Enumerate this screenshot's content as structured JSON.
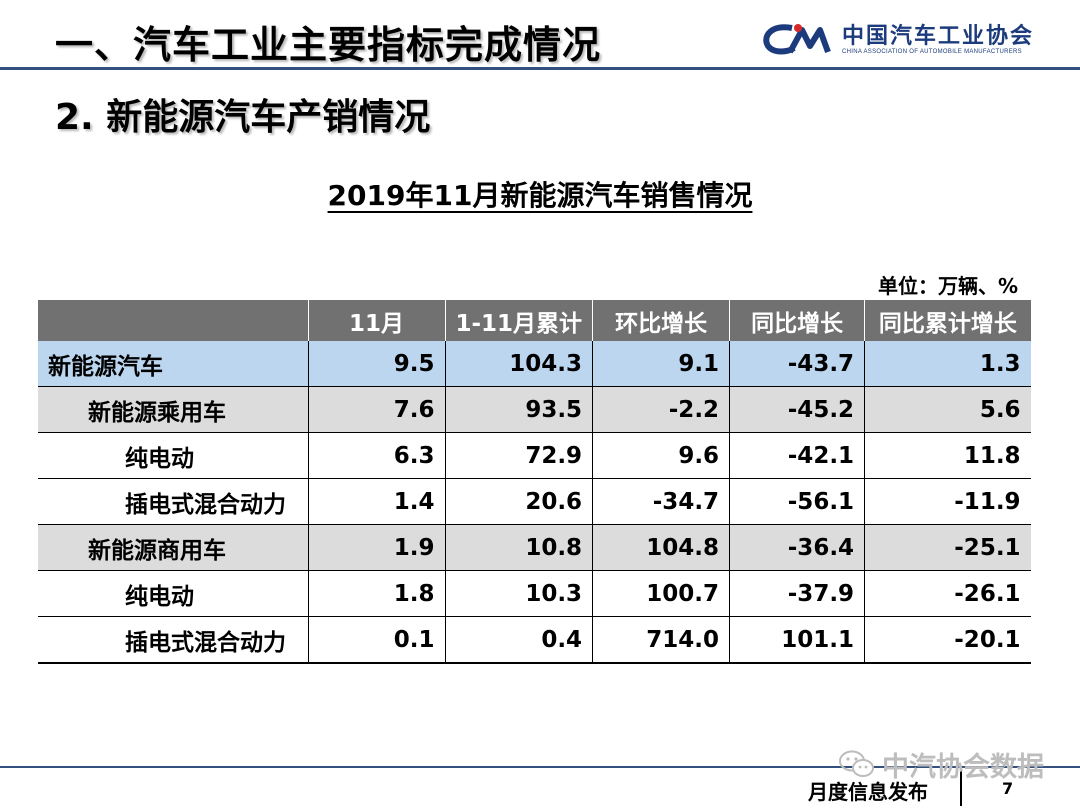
{
  "header": {
    "title": "一、汽车工业主要指标完成情况",
    "subtitle": "2. 新能源汽车产销情况",
    "logo_cn": "中国汽车工业协会",
    "logo_en": "CHINA ASSOCIATION OF AUTOMOBILE MANUFACTURERS"
  },
  "table": {
    "title": "2019年11月新能源汽车销售情况",
    "unit": "单位：万辆、%",
    "columns": [
      "",
      "11月",
      "1-11月累计",
      "环比增长",
      "同比增长",
      "同比累计增长"
    ],
    "rows": [
      {
        "label": "新能源汽车",
        "values": [
          "9.5",
          "104.3",
          "9.1",
          "-43.7",
          "1.3"
        ]
      },
      {
        "label": "新能源乘用车",
        "values": [
          "7.6",
          "93.5",
          "-2.2",
          "-45.2",
          "5.6"
        ]
      },
      {
        "label": "纯电动",
        "values": [
          "6.3",
          "72.9",
          "9.6",
          "-42.1",
          "11.8"
        ]
      },
      {
        "label": "插电式混合动力",
        "values": [
          "1.4",
          "20.6",
          "-34.7",
          "-56.1",
          "-11.9"
        ]
      },
      {
        "label": "新能源商用车",
        "values": [
          "1.9",
          "10.8",
          "104.8",
          "-36.4",
          "-25.1"
        ]
      },
      {
        "label": "纯电动",
        "values": [
          "1.8",
          "10.3",
          "100.7",
          "-37.9",
          "-26.1"
        ]
      },
      {
        "label": "插电式混合动力",
        "values": [
          "0.1",
          "0.4",
          "714.0",
          "101.1",
          "-20.1"
        ]
      }
    ]
  },
  "footer": {
    "label": "月度信息发布",
    "page": "7",
    "watermark": "中汽协会数据"
  },
  "colors": {
    "header_bg": "#717171",
    "top_row": "#bcd6f0",
    "sub_row": "#dcdcdc",
    "brand": "#1c3b7d"
  }
}
